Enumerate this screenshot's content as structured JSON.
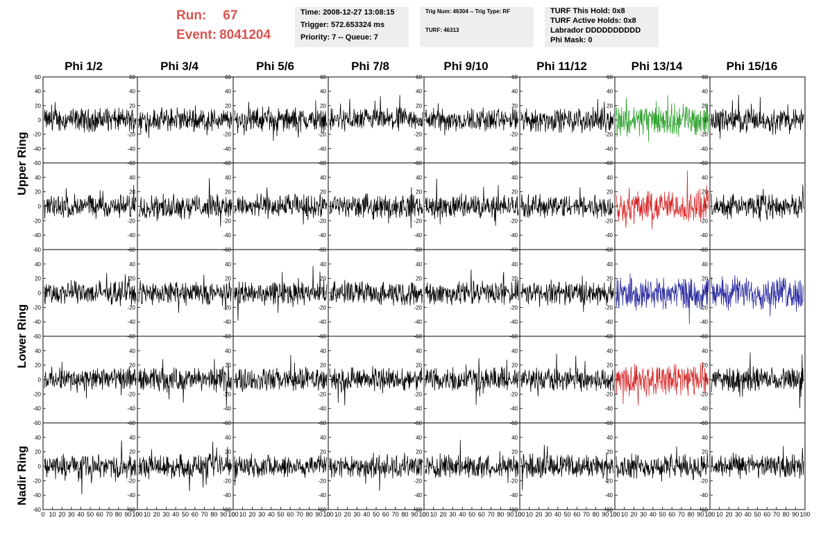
{
  "header": {
    "run_label": "Run:",
    "run_value": "67",
    "event_label": "Event:",
    "event_value": "8041204"
  },
  "info": {
    "time": "Time: 2008-12-27 13:08:15",
    "trigger": "Trigger: 572.653324 ms",
    "priority": "Priority: 7 -- Queue: 7",
    "trig": "Trig Num: 46304 -- Trig Type: RF",
    "turf": "TURF: 46313",
    "turf_hold": "TURF This Hold: 0x8",
    "turf_active": "TURF Active Holds: 0x8",
    "labrador": "Labrador DDDDDDDDDD",
    "phi_mask": "Phi Mask: 0"
  },
  "columns": [
    "Phi 1/2",
    "Phi 3/4",
    "Phi 5/6",
    "Phi 7/8",
    "Phi 9/10",
    "Phi 11/12",
    "Phi 13/14",
    "Phi 15/16"
  ],
  "ring_labels": [
    "Upper Ring",
    "Lower Ring",
    "Nadir Ring"
  ],
  "colors": {
    "waveform": "#000000",
    "green": "#2ca02c",
    "red": "#d62728",
    "blue": "#2a2aa0",
    "run_text": "#d9534f",
    "info_bg": "#eeeeee"
  },
  "chart_data": {
    "type": "line",
    "description_rows": [
      "upper-1",
      "upper-2",
      "lower-1",
      "lower-2",
      "nadir"
    ],
    "ylim": [
      -60,
      60
    ],
    "xlim": [
      0,
      100
    ],
    "y_ticks": [
      "60",
      "40",
      "20",
      "0",
      "-20",
      "-40",
      "-60"
    ],
    "x_ticks": [
      "0",
      "10",
      "20",
      "30",
      "40",
      "50",
      "60",
      "70",
      "80",
      "90",
      "100"
    ],
    "highlight": [
      {
        "row": 0,
        "col": 6,
        "color": "green"
      },
      {
        "row": 1,
        "col": 6,
        "color": "red"
      },
      {
        "row": 2,
        "col": 6,
        "color": "blue"
      },
      {
        "row": 2,
        "col": 7,
        "color": "blue"
      },
      {
        "row": 3,
        "col": 6,
        "color": "red"
      }
    ]
  }
}
